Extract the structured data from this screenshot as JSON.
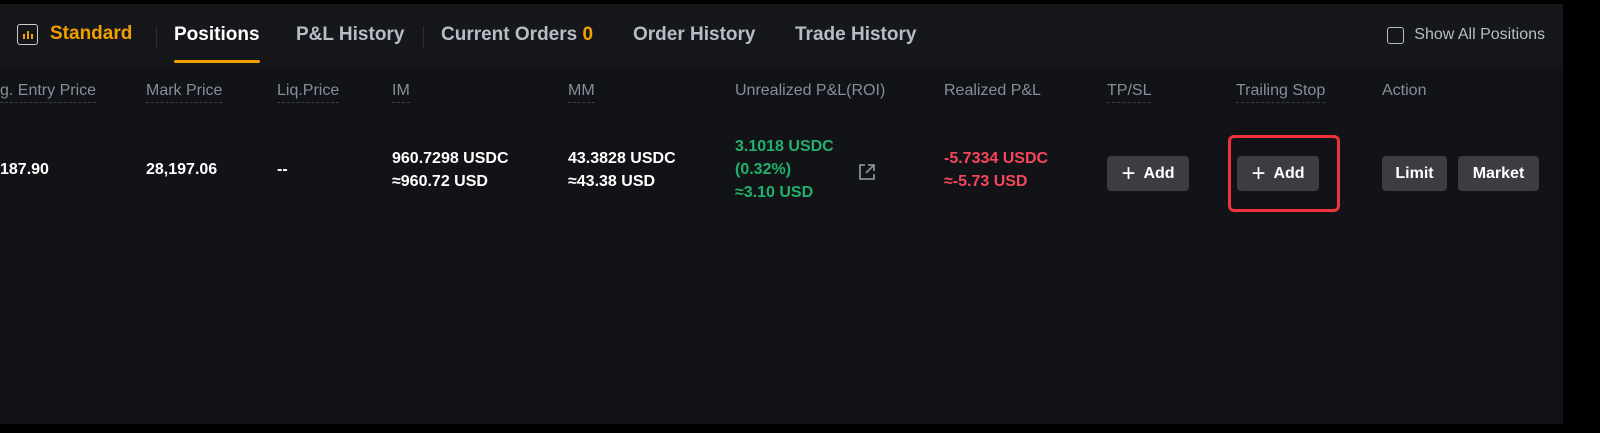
{
  "tabs": {
    "standard": "Standard",
    "positions": "Positions",
    "pnl_history": "P&L History",
    "current_orders": "Current Orders",
    "current_orders_count": "0",
    "order_history": "Order History",
    "trade_history": "Trade History",
    "show_all": "Show All Positions"
  },
  "columns": [
    "g. Entry Price",
    "Mark Price",
    "Liq.Price",
    "IM",
    "MM",
    "Unrealized P&L(ROI)",
    "Realized P&L",
    "TP/SL",
    "Trailing Stop",
    "Action"
  ],
  "row": {
    "entry_price": "187.90",
    "mark_price": "28,197.06",
    "liq_price": "--",
    "im": "960.7298 USDC",
    "im_usd": "≈960.72 USD",
    "mm": "43.3828 USDC",
    "mm_usd": "≈43.38 USD",
    "upnl": "3.1018 USDC",
    "roi": "(0.32%)",
    "upnl_usd": "≈3.10 USD",
    "rpnl": "-5.7334 USDC",
    "rpnl_usd": "≈-5.73 USD"
  },
  "buttons": {
    "tpsl_add": "Add",
    "trailing_add": "Add",
    "limit": "Limit",
    "market": "Market"
  },
  "colors": {
    "accent": "#f0a000",
    "profit": "#20b26c",
    "loss": "#f6465d",
    "highlight": "#f0323c"
  }
}
